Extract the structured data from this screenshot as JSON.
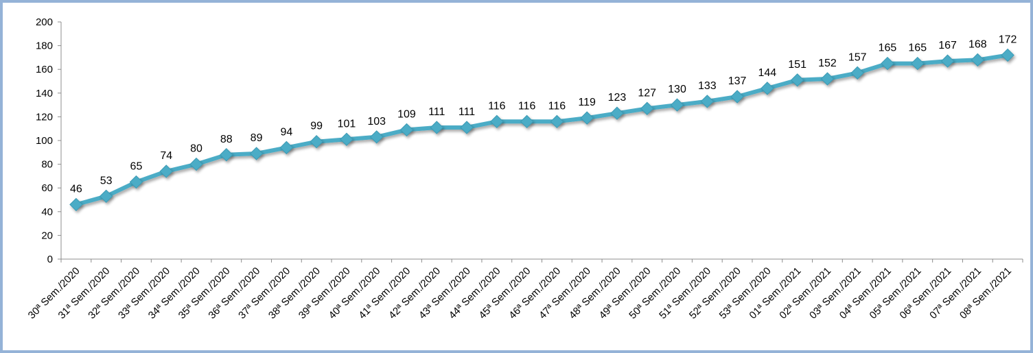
{
  "chart_data": {
    "type": "line",
    "categories": [
      "30ª Sem./2020",
      "31ª Sem./2020",
      "32ª Sem./2020",
      "33ª Sem./2020",
      "34ª Sem./2020",
      "35ª Sem./2020",
      "36ª Sem./2020",
      "37ª Sem./2020",
      "38ª Sem./2020",
      "39ª Sem./2020",
      "40ª Sem./2020",
      "41ª Sem./2020",
      "42ª Sem./2020",
      "43ª Sem./2020",
      "44ª Sem./2020",
      "45ª Sem./2020",
      "46ª Sem./2020",
      "47ª Sem./2020",
      "48ª Sem./2020",
      "49ª Sem./2020",
      "50ª Sem./2020",
      "51ª Sem./2020",
      "52ª Sem./2020",
      "53ª Sem./2020",
      "01ª Sem./2021",
      "02ª Sem./2021",
      "03ª Sem./2021",
      "04ª Sem./2021",
      "05ª Sem./2021",
      "06ª Sem./2021",
      "07ª Sem./2021",
      "08ª Sem./2021"
    ],
    "series": [
      {
        "values": [
          46,
          53,
          65,
          74,
          80,
          88,
          89,
          94,
          99,
          101,
          103,
          109,
          111,
          111,
          116,
          116,
          116,
          119,
          123,
          127,
          130,
          133,
          137,
          144,
          151,
          152,
          157,
          165,
          165,
          167,
          168,
          172
        ]
      }
    ],
    "data_labels": [
      "46",
      "53",
      "65",
      "74",
      "80",
      "88",
      "89",
      "94",
      "99",
      "101",
      "103",
      "109",
      "111",
      "111",
      "116",
      "116",
      "116",
      "119",
      "123",
      "127",
      "130",
      "133",
      "137",
      "144",
      "151",
      "152",
      "157",
      "165",
      "165",
      "167",
      "168",
      "172"
    ],
    "y_ticks": [
      "0",
      "20",
      "40",
      "60",
      "80",
      "100",
      "120",
      "140",
      "160",
      "180",
      "200"
    ],
    "ylim": [
      0,
      200
    ],
    "title": "",
    "xlabel": "",
    "ylabel": "",
    "grid": false,
    "legend": "none",
    "colors": {
      "line": "#4bacc6",
      "axis": "#8c8c8c",
      "frame": "#95b3d7"
    }
  }
}
